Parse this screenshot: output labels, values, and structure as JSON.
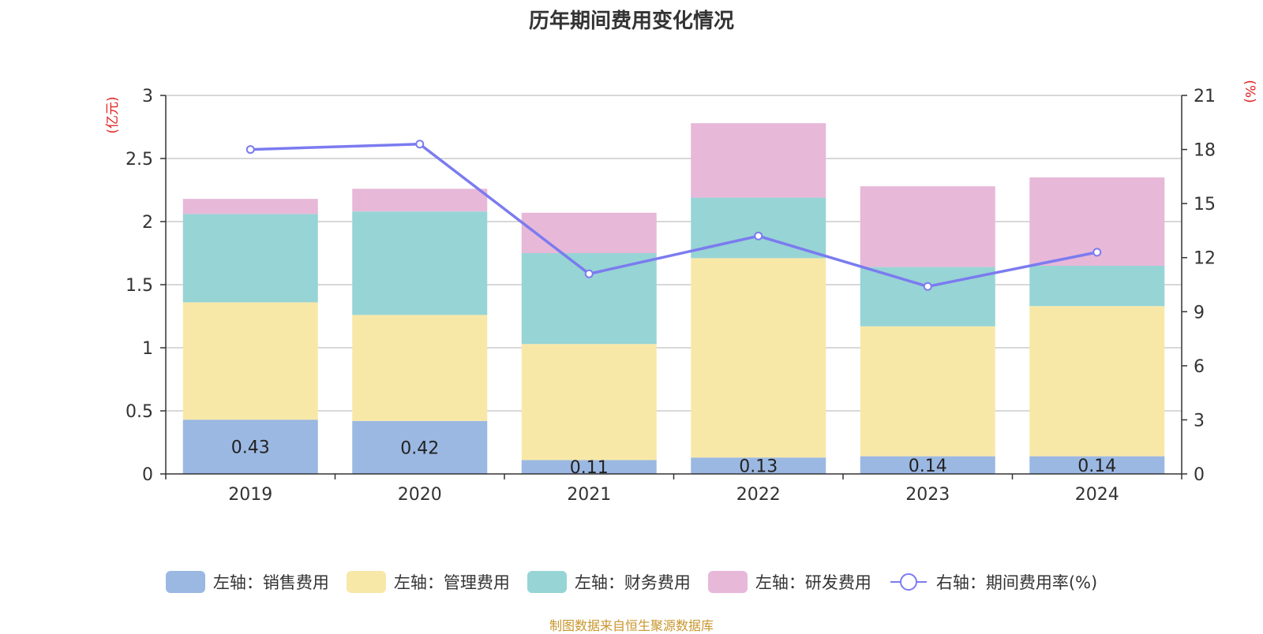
{
  "chart_data": {
    "type": "bar",
    "stacked": true,
    "title": "历年期间费用变化情况",
    "categories": [
      "2019",
      "2020",
      "2021",
      "2022",
      "2023",
      "2024"
    ],
    "series": [
      {
        "name": "左轴：销售费用",
        "axis": "left",
        "color": "#9bb8e2",
        "values": [
          0.43,
          0.42,
          0.11,
          0.13,
          0.14,
          0.14
        ],
        "labels": [
          "0.43",
          "0.42",
          "0.11",
          "0.13",
          "0.14",
          "0.14"
        ]
      },
      {
        "name": "左轴：管理费用",
        "axis": "left",
        "color": "#f8e8a8",
        "values": [
          0.93,
          0.84,
          0.92,
          1.58,
          1.03,
          1.19
        ]
      },
      {
        "name": "左轴：财务费用",
        "axis": "left",
        "color": "#97d4d5",
        "values": [
          0.7,
          0.82,
          0.72,
          0.48,
          0.47,
          0.32
        ]
      },
      {
        "name": "左轴：研发费用",
        "axis": "left",
        "color": "#e7b8d8",
        "values": [
          0.12,
          0.18,
          0.32,
          0.59,
          0.64,
          0.7
        ]
      }
    ],
    "line": {
      "name": "右轴：期间费用率(%)",
      "axis": "right",
      "color": "#7b7bf0",
      "values": [
        18.0,
        18.3,
        11.1,
        13.2,
        10.4,
        12.3
      ]
    },
    "left_axis": {
      "label": "(亿元)",
      "min": 0,
      "max": 3,
      "ticks": [
        "0",
        "0.5",
        "1",
        "1.5",
        "2",
        "2.5",
        "3"
      ]
    },
    "right_axis": {
      "label": "(%)",
      "min": 0,
      "max": 21,
      "ticks": [
        "0",
        "3",
        "6",
        "9",
        "12",
        "15",
        "18",
        "21"
      ]
    },
    "grid": true,
    "legend_position": "bottom"
  },
  "legend": {
    "items": [
      "左轴：销售费用",
      "左轴：管理费用",
      "左轴：财务费用",
      "左轴：研发费用",
      "右轴：期间费用率(%)"
    ],
    "colors": [
      "#9bb8e2",
      "#f8e8a8",
      "#97d4d5",
      "#e7b8d8",
      "#7b7bf0"
    ]
  },
  "footer": "制图数据来自恒生聚源数据库"
}
